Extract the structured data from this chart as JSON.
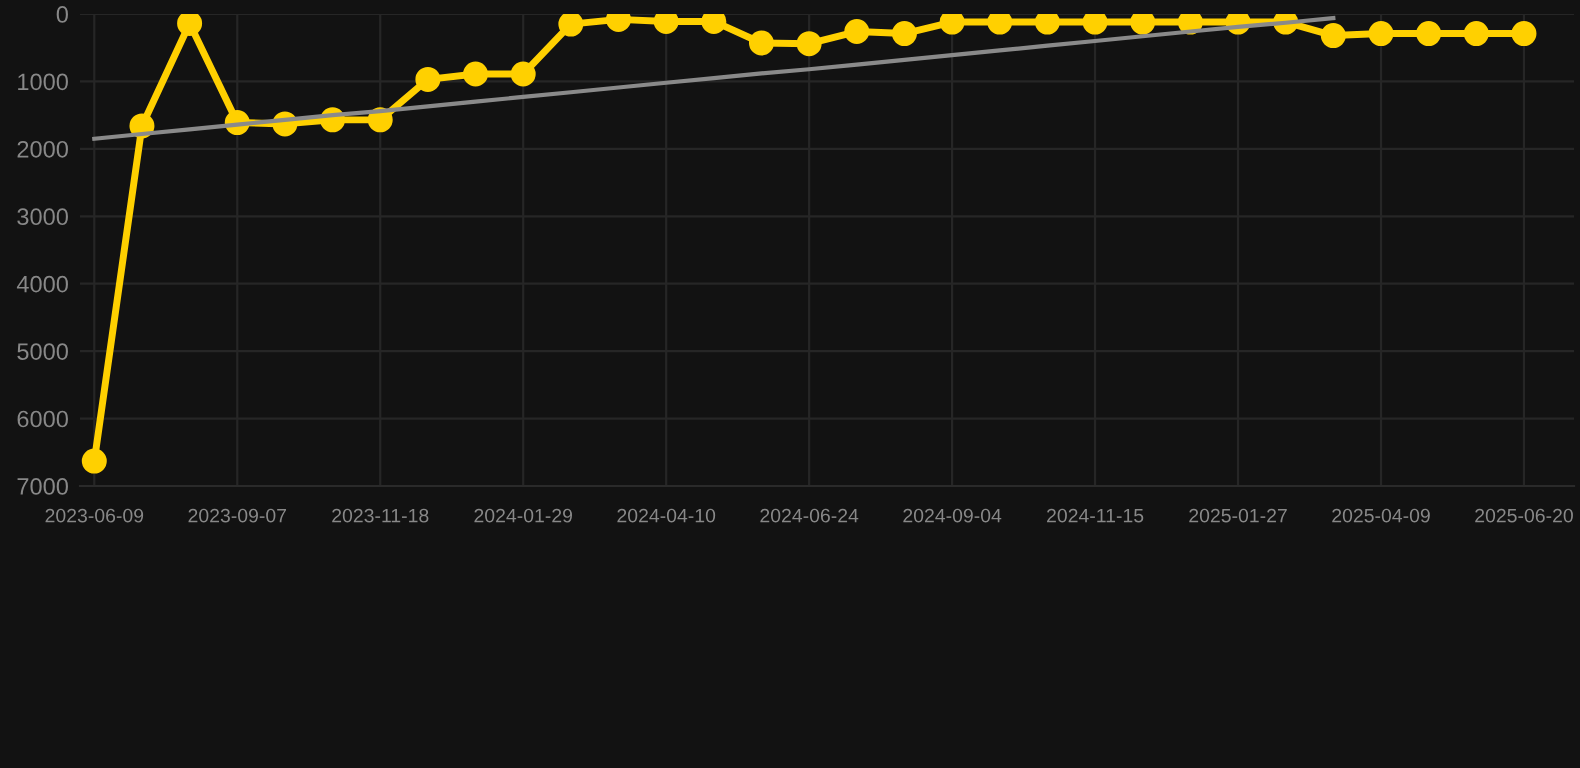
{
  "chart_data": {
    "type": "line",
    "categories": [
      "2023-06-09",
      null,
      null,
      "2023-09-07",
      null,
      null,
      "2023-11-18",
      null,
      null,
      "2024-01-29",
      null,
      null,
      "2024-04-10",
      null,
      null,
      "2024-06-24",
      null,
      null,
      "2024-09-04",
      null,
      null,
      "2024-11-15",
      null,
      null,
      "2025-01-27",
      null,
      null,
      "2025-04-09",
      null,
      null,
      "2025-06-20"
    ],
    "series": [
      {
        "color": "#ffd000",
        "marker": "circle",
        "values": [
          6630,
          1660,
          140,
          1610,
          1630,
          1570,
          1570,
          970,
          890,
          890,
          150,
          80,
          110,
          110,
          430,
          440,
          260,
          290,
          120,
          120,
          120,
          120,
          120,
          120,
          120,
          120,
          320,
          290,
          290,
          290,
          290
        ]
      },
      {
        "type": "line",
        "color": "#8a8a8a",
        "marker": "none",
        "values": [
          1850,
          1780,
          1710,
          1640,
          1570,
          1500,
          1440,
          1370,
          1300,
          1230,
          1160,
          1090,
          1020,
          950,
          880,
          820,
          750,
          680,
          610,
          540,
          470,
          400,
          330,
          260,
          190,
          130,
          60,
          null,
          null,
          null,
          null
        ]
      }
    ],
    "ylim": [
      7000,
      0
    ],
    "yticks": [
      0,
      1000,
      2000,
      3000,
      4000,
      5000,
      6000,
      7000
    ],
    "grid": true,
    "line_style": "solid"
  }
}
